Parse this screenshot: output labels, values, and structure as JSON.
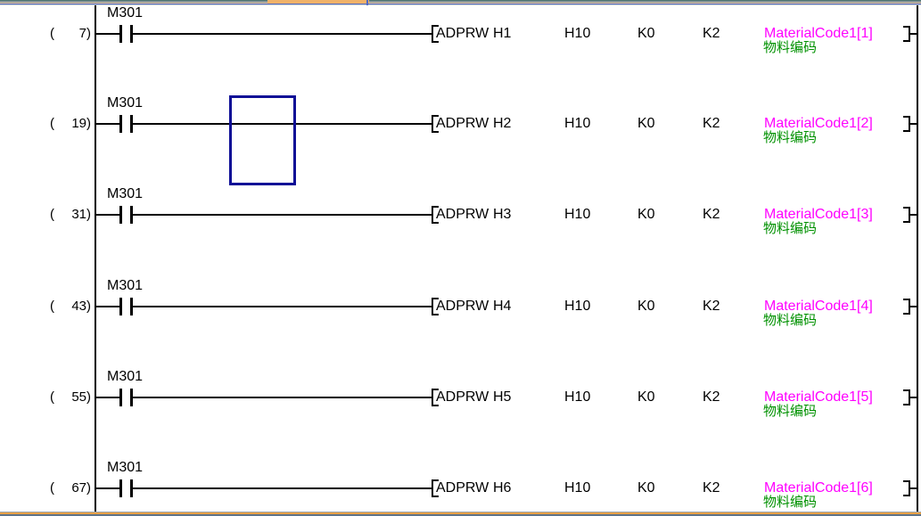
{
  "colors": {
    "magenta": "#FF00FF",
    "green": "#009100",
    "selection": "#0D0D96",
    "line": "#000000",
    "strip_teal": "#48716F",
    "strip_gray": "#8E9A9A",
    "strip_tan": "#E9C49C",
    "strip_blue": "#5069C5",
    "strip_light": "#C6CFCF",
    "tab_orange": "#F0B269",
    "bottom_gray": "#A0AAB4",
    "bottom_orange": "#E8A044",
    "bottom_slate": "#5F7388"
  },
  "contact_label": "M301",
  "step_format": {
    "open": "(",
    "close": ")"
  },
  "instruction": {
    "opcode": "ADPRW",
    "param2": "H10",
    "param3": "K0",
    "param4": "K2"
  },
  "rungs": [
    {
      "step": "7",
      "operand": "H1",
      "label": "MaterialCode1[1]",
      "comment": "物料编码",
      "selected": false
    },
    {
      "step": "19",
      "operand": "H2",
      "label": "MaterialCode1[2]",
      "comment": "物料编码",
      "selected": true
    },
    {
      "step": "31",
      "operand": "H3",
      "label": "MaterialCode1[3]",
      "comment": "物料编码",
      "selected": false
    },
    {
      "step": "43",
      "operand": "H4",
      "label": "MaterialCode1[4]",
      "comment": "物料编码",
      "selected": false
    },
    {
      "step": "55",
      "operand": "H5",
      "label": "MaterialCode1[5]",
      "comment": "物料编码",
      "selected": false
    },
    {
      "step": "67",
      "operand": "H6",
      "label": "MaterialCode1[6]",
      "comment": "物料编码",
      "selected": false
    }
  ]
}
